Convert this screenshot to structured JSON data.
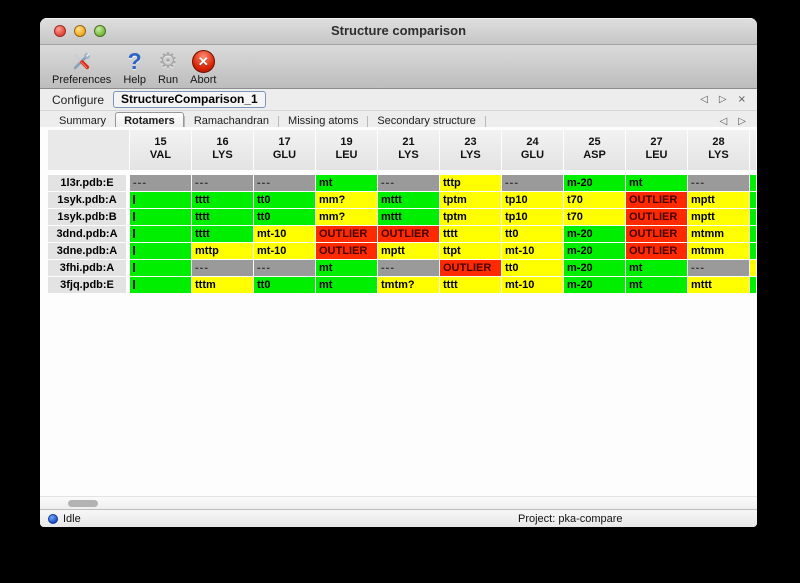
{
  "titlebar": {
    "title": "Structure comparison"
  },
  "toolbar": {
    "buttons": [
      {
        "id": "preferences",
        "label": "Preferences",
        "icon": "crossed-tools-icon"
      },
      {
        "id": "help",
        "label": "Help",
        "icon": "question-mark-icon",
        "glyph": "?"
      },
      {
        "id": "run",
        "label": "Run",
        "icon": "gear-icon",
        "glyph": "⚙"
      },
      {
        "id": "abort",
        "label": "Abort",
        "icon": "red-x-icon",
        "glyph": "✕"
      }
    ]
  },
  "configure": {
    "label": "Configure",
    "value": "StructureComparison_1",
    "nav": {
      "prev": "◁",
      "next": "▷",
      "close": "×"
    }
  },
  "tabbar": {
    "tabs": [
      {
        "label": "Summary",
        "selected": false
      },
      {
        "label": "Rotamers",
        "selected": true
      },
      {
        "label": "Ramachandran",
        "selected": false
      },
      {
        "label": "Missing atoms",
        "selected": false
      },
      {
        "label": "Secondary structure",
        "selected": false
      }
    ],
    "nav": {
      "prev": "◁",
      "next": "▷"
    }
  },
  "colors": {
    "green": "#00ee00",
    "yellow": "#ffff00",
    "red": "#ff2a00",
    "gray": "#9a9a9a"
  },
  "table": {
    "columns": [
      {
        "num": "15",
        "res": "VAL"
      },
      {
        "num": "16",
        "res": "LYS"
      },
      {
        "num": "17",
        "res": "GLU"
      },
      {
        "num": "19",
        "res": "LEU"
      },
      {
        "num": "21",
        "res": "LYS"
      },
      {
        "num": "23",
        "res": "LYS"
      },
      {
        "num": "24",
        "res": "GLU"
      },
      {
        "num": "25",
        "res": "ASP"
      },
      {
        "num": "27",
        "res": "LEU"
      },
      {
        "num": "28",
        "res": "LYS"
      }
    ],
    "rows": [
      {
        "label": "1l3r.pdb:E",
        "overflow": "green",
        "cells": [
          {
            "t": "---",
            "c": "gray"
          },
          {
            "t": "---",
            "c": "gray"
          },
          {
            "t": "---",
            "c": "gray"
          },
          {
            "t": "mt",
            "c": "green"
          },
          {
            "t": "---",
            "c": "gray"
          },
          {
            "t": "tttp",
            "c": "yellow"
          },
          {
            "t": "---",
            "c": "gray"
          },
          {
            "t": "m-20",
            "c": "green"
          },
          {
            "t": "mt",
            "c": "green"
          },
          {
            "t": "---",
            "c": "gray"
          }
        ]
      },
      {
        "label": "1syk.pdb:A",
        "overflow": "green",
        "cells": [
          {
            "t": "",
            "c": "green",
            "clip": true
          },
          {
            "t": "tttt",
            "c": "green"
          },
          {
            "t": "tt0",
            "c": "green"
          },
          {
            "t": "mm?",
            "c": "yellow"
          },
          {
            "t": "mttt",
            "c": "green"
          },
          {
            "t": "tptm",
            "c": "yellow"
          },
          {
            "t": "tp10",
            "c": "yellow"
          },
          {
            "t": "t70",
            "c": "yellow"
          },
          {
            "t": "OUTLIER",
            "c": "red"
          },
          {
            "t": "mptt",
            "c": "yellow"
          }
        ]
      },
      {
        "label": "1syk.pdb:B",
        "overflow": "green",
        "cells": [
          {
            "t": "",
            "c": "green",
            "clip": true
          },
          {
            "t": "tttt",
            "c": "green"
          },
          {
            "t": "tt0",
            "c": "green"
          },
          {
            "t": "mm?",
            "c": "yellow"
          },
          {
            "t": "mttt",
            "c": "green"
          },
          {
            "t": "tptm",
            "c": "yellow"
          },
          {
            "t": "tp10",
            "c": "yellow"
          },
          {
            "t": "t70",
            "c": "yellow"
          },
          {
            "t": "OUTLIER",
            "c": "red"
          },
          {
            "t": "mptt",
            "c": "yellow"
          }
        ]
      },
      {
        "label": "3dnd.pdb:A",
        "overflow": "green",
        "cells": [
          {
            "t": "",
            "c": "green",
            "clip": true
          },
          {
            "t": "tttt",
            "c": "green"
          },
          {
            "t": "mt-10",
            "c": "yellow"
          },
          {
            "t": "OUTLIER",
            "c": "red"
          },
          {
            "t": "OUTLIER",
            "c": "red"
          },
          {
            "t": "tttt",
            "c": "yellow"
          },
          {
            "t": "tt0",
            "c": "yellow"
          },
          {
            "t": "m-20",
            "c": "green"
          },
          {
            "t": "OUTLIER",
            "c": "red"
          },
          {
            "t": "mtmm",
            "c": "yellow"
          }
        ]
      },
      {
        "label": "3dne.pdb:A",
        "overflow": "green",
        "cells": [
          {
            "t": "",
            "c": "green",
            "clip": true
          },
          {
            "t": "mttp",
            "c": "yellow"
          },
          {
            "t": "mt-10",
            "c": "yellow"
          },
          {
            "t": "OUTLIER",
            "c": "red"
          },
          {
            "t": "mptt",
            "c": "yellow"
          },
          {
            "t": "ttpt",
            "c": "yellow"
          },
          {
            "t": "mt-10",
            "c": "yellow"
          },
          {
            "t": "m-20",
            "c": "green"
          },
          {
            "t": "OUTLIER",
            "c": "red"
          },
          {
            "t": "mtmm",
            "c": "yellow"
          }
        ]
      },
      {
        "label": "3fhi.pdb:A",
        "overflow": "yellow",
        "cells": [
          {
            "t": "",
            "c": "green",
            "clip": true
          },
          {
            "t": "---",
            "c": "gray"
          },
          {
            "t": "---",
            "c": "gray"
          },
          {
            "t": "mt",
            "c": "green"
          },
          {
            "t": "---",
            "c": "gray"
          },
          {
            "t": "OUTLIER",
            "c": "red"
          },
          {
            "t": "tt0",
            "c": "yellow"
          },
          {
            "t": "m-20",
            "c": "green"
          },
          {
            "t": "mt",
            "c": "green"
          },
          {
            "t": "---",
            "c": "gray"
          }
        ]
      },
      {
        "label": "3fjq.pdb:E",
        "overflow": "green",
        "cells": [
          {
            "t": "",
            "c": "green",
            "clip": true
          },
          {
            "t": "tttm",
            "c": "yellow"
          },
          {
            "t": "tt0",
            "c": "green"
          },
          {
            "t": "mt",
            "c": "green"
          },
          {
            "t": "tmtm?",
            "c": "yellow"
          },
          {
            "t": "tttt",
            "c": "yellow"
          },
          {
            "t": "mt-10",
            "c": "yellow"
          },
          {
            "t": "m-20",
            "c": "green"
          },
          {
            "t": "mt",
            "c": "green"
          },
          {
            "t": "mttt",
            "c": "yellow"
          }
        ]
      }
    ]
  },
  "status": {
    "left": "Idle",
    "right": "Project: pka-compare"
  }
}
